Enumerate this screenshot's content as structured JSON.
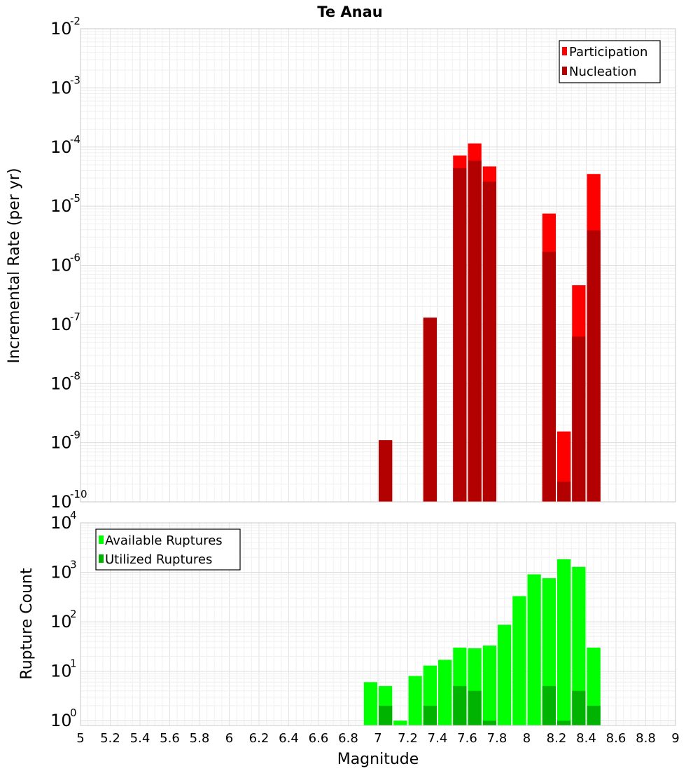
{
  "chart_data": [
    {
      "type": "bar",
      "title": "Te Anau",
      "ylabel": "Incremental Rate (per yr)",
      "xlabel": "",
      "x_range": [
        5,
        9
      ],
      "y_scale": "log",
      "ylim": [
        1e-10,
        0.01
      ],
      "y_ticks": [
        {
          "base": "10",
          "exp": "-10",
          "value": 1e-10
        },
        {
          "base": "10",
          "exp": "-9",
          "value": 1e-09
        },
        {
          "base": "10",
          "exp": "-8",
          "value": 1e-08
        },
        {
          "base": "10",
          "exp": "-7",
          "value": 1e-07
        },
        {
          "base": "10",
          "exp": "-6",
          "value": 1e-06
        },
        {
          "base": "10",
          "exp": "-5",
          "value": 1e-05
        },
        {
          "base": "10",
          "exp": "-4",
          "value": 0.0001
        },
        {
          "base": "10",
          "exp": "-3",
          "value": 0.001
        },
        {
          "base": "10",
          "exp": "-2",
          "value": 0.01
        }
      ],
      "grid": true,
      "legend_position": "top-right",
      "bin_width": 0.1,
      "series": [
        {
          "name": "Participation",
          "color": "#ff0000",
          "points": [
            {
              "x": 7.05,
              "y": 1.1e-09
            },
            {
              "x": 7.35,
              "y": 1.3e-07
            },
            {
              "x": 7.55,
              "y": 7.2e-05
            },
            {
              "x": 7.65,
              "y": 0.000115
            },
            {
              "x": 7.75,
              "y": 4.7e-05
            },
            {
              "x": 8.15,
              "y": 7.5e-06
            },
            {
              "x": 8.25,
              "y": 1.55e-09
            },
            {
              "x": 8.35,
              "y": 4.6e-07
            },
            {
              "x": 8.45,
              "y": 3.5e-05
            }
          ]
        },
        {
          "name": "Nucleation",
          "color": "#b30000",
          "points": [
            {
              "x": 7.05,
              "y": 1.1e-09
            },
            {
              "x": 7.35,
              "y": 1.3e-07
            },
            {
              "x": 7.55,
              "y": 4.4e-05
            },
            {
              "x": 7.65,
              "y": 5.9e-05
            },
            {
              "x": 7.75,
              "y": 2.6e-05
            },
            {
              "x": 8.15,
              "y": 1.7e-06
            },
            {
              "x": 8.25,
              "y": 2.2e-10
            },
            {
              "x": 8.35,
              "y": 6.2e-08
            },
            {
              "x": 8.45,
              "y": 3.9e-06
            }
          ]
        }
      ]
    },
    {
      "type": "bar",
      "title": "",
      "ylabel": "Rupture Count",
      "xlabel": "Magnitude",
      "x_range": [
        5,
        9
      ],
      "x_ticks": [
        "5",
        "5.2",
        "5.4",
        "5.6",
        "5.8",
        "6",
        "6.2",
        "6.4",
        "6.6",
        "6.8",
        "7",
        "7.2",
        "7.4",
        "7.6",
        "7.8",
        "8",
        "8.2",
        "8.4",
        "8.6",
        "8.8",
        "9"
      ],
      "y_scale": "log",
      "ylim": [
        0.8,
        10000
      ],
      "y_ticks": [
        {
          "base": "10",
          "exp": "0",
          "value": 1
        },
        {
          "base": "10",
          "exp": "1",
          "value": 10
        },
        {
          "base": "10",
          "exp": "2",
          "value": 100
        },
        {
          "base": "10",
          "exp": "3",
          "value": 1000
        },
        {
          "base": "10",
          "exp": "4",
          "value": 10000
        }
      ],
      "grid": true,
      "legend_position": "top-left",
      "bin_width": 0.1,
      "series": [
        {
          "name": "Available Ruptures",
          "color": "#00ff00",
          "points": [
            {
              "x": 6.95,
              "y": 6
            },
            {
              "x": 7.05,
              "y": 5
            },
            {
              "x": 7.15,
              "y": 1
            },
            {
              "x": 7.25,
              "y": 8
            },
            {
              "x": 7.35,
              "y": 13
            },
            {
              "x": 7.45,
              "y": 17
            },
            {
              "x": 7.55,
              "y": 30
            },
            {
              "x": 7.65,
              "y": 29
            },
            {
              "x": 7.75,
              "y": 33
            },
            {
              "x": 7.85,
              "y": 87
            },
            {
              "x": 7.95,
              "y": 330
            },
            {
              "x": 8.05,
              "y": 910
            },
            {
              "x": 8.15,
              "y": 760
            },
            {
              "x": 8.25,
              "y": 1840
            },
            {
              "x": 8.35,
              "y": 1290
            },
            {
              "x": 8.45,
              "y": 30
            }
          ]
        },
        {
          "name": "Utilized Ruptures",
          "color": "#00b300",
          "points": [
            {
              "x": 7.05,
              "y": 2
            },
            {
              "x": 7.35,
              "y": 2
            },
            {
              "x": 7.55,
              "y": 5
            },
            {
              "x": 7.65,
              "y": 4
            },
            {
              "x": 7.75,
              "y": 1
            },
            {
              "x": 8.15,
              "y": 5
            },
            {
              "x": 8.25,
              "y": 1
            },
            {
              "x": 8.35,
              "y": 4
            },
            {
              "x": 8.45,
              "y": 2
            }
          ]
        }
      ]
    }
  ]
}
